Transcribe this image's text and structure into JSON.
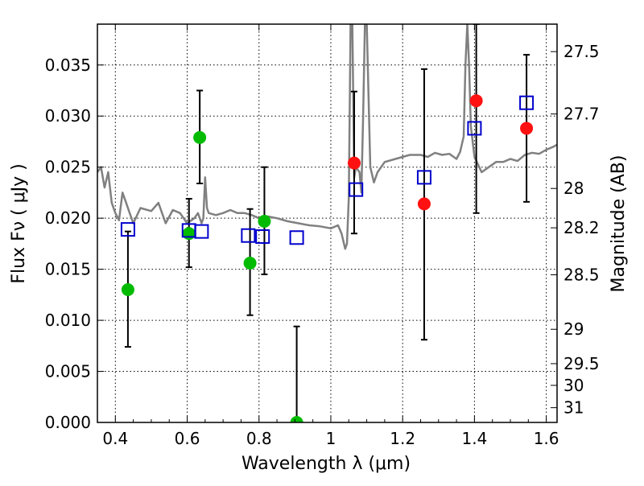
{
  "chart_data": {
    "type": "scatter",
    "xlabel": "Wavelength  λ (μm)",
    "ylabel": "Flux  Fν  ( μJy )",
    "y2label": "Magnitude (AB)",
    "xlim": [
      0.35,
      1.63
    ],
    "ylim": [
      0.0,
      0.039
    ],
    "grid": true,
    "x_ticks": [
      {
        "v": 0.4,
        "label": "0.4"
      },
      {
        "v": 0.6,
        "label": "0.6"
      },
      {
        "v": 0.8,
        "label": "0.8"
      },
      {
        "v": 1.0,
        "label": "1"
      },
      {
        "v": 1.2,
        "label": "1.2"
      },
      {
        "v": 1.4,
        "label": "1.4"
      },
      {
        "v": 1.6,
        "label": "1.6"
      }
    ],
    "y_ticks": [
      {
        "v": 0.0,
        "label": "0.000"
      },
      {
        "v": 0.005,
        "label": "0.005"
      },
      {
        "v": 0.01,
        "label": "0.010"
      },
      {
        "v": 0.015,
        "label": "0.015"
      },
      {
        "v": 0.02,
        "label": "0.020"
      },
      {
        "v": 0.025,
        "label": "0.025"
      },
      {
        "v": 0.03,
        "label": "0.030"
      },
      {
        "v": 0.035,
        "label": "0.035"
      }
    ],
    "y2_ticks": [
      {
        "mag": 27.5,
        "label": "27.5"
      },
      {
        "mag": 27.7,
        "label": "27.7"
      },
      {
        "mag": 28,
        "label": "28"
      },
      {
        "mag": 28.2,
        "label": "28.2"
      },
      {
        "mag": 28.5,
        "label": "28.5"
      },
      {
        "mag": 29,
        "label": "29"
      },
      {
        "mag": 29.5,
        "label": "29.5"
      },
      {
        "mag": 30,
        "label": "30"
      },
      {
        "mag": 31,
        "label": "31"
      }
    ],
    "series": [
      {
        "kind": "line",
        "color": "#808080",
        "x": [
          0.35,
          0.36,
          0.37,
          0.38,
          0.39,
          0.4,
          0.41,
          0.42,
          0.43,
          0.44,
          0.45,
          0.47,
          0.5,
          0.52,
          0.54,
          0.56,
          0.58,
          0.6,
          0.62,
          0.63,
          0.64,
          0.645,
          0.65,
          0.655,
          0.66,
          0.68,
          0.7,
          0.72,
          0.74,
          0.76,
          0.78,
          0.8,
          0.82,
          0.85,
          0.88,
          0.91,
          0.94,
          0.97,
          1.0,
          1.02,
          1.03,
          1.04,
          1.045,
          1.05,
          1.055,
          1.06,
          1.065,
          1.07,
          1.08,
          1.085,
          1.09,
          1.095,
          1.1,
          1.11,
          1.12,
          1.13,
          1.15,
          1.18,
          1.2,
          1.22,
          1.25,
          1.27,
          1.29,
          1.31,
          1.33,
          1.35,
          1.36,
          1.37,
          1.375,
          1.38,
          1.385,
          1.39,
          1.4,
          1.42,
          1.44,
          1.46,
          1.48,
          1.5,
          1.52,
          1.54,
          1.56,
          1.58,
          1.6,
          1.62,
          1.63
        ],
        "y": [
          0.0245,
          0.025,
          0.023,
          0.0245,
          0.0215,
          0.0205,
          0.0198,
          0.0225,
          0.0215,
          0.0205,
          0.0195,
          0.021,
          0.0207,
          0.0215,
          0.0195,
          0.0208,
          0.0205,
          0.0195,
          0.02,
          0.0205,
          0.0195,
          0.02,
          0.024,
          0.021,
          0.0205,
          0.0203,
          0.0205,
          0.0208,
          0.0205,
          0.0205,
          0.0203,
          0.02,
          0.0202,
          0.02,
          0.0197,
          0.0195,
          0.0193,
          0.0192,
          0.019,
          0.0193,
          0.0185,
          0.017,
          0.0175,
          0.022,
          0.039,
          0.039,
          0.024,
          0.025,
          0.0245,
          0.0225,
          0.03,
          0.039,
          0.039,
          0.025,
          0.0235,
          0.0245,
          0.0255,
          0.0258,
          0.026,
          0.0262,
          0.0262,
          0.026,
          0.0264,
          0.0262,
          0.0263,
          0.0258,
          0.0265,
          0.028,
          0.035,
          0.039,
          0.035,
          0.029,
          0.026,
          0.0245,
          0.025,
          0.0255,
          0.0255,
          0.0258,
          0.0256,
          0.0262,
          0.0264,
          0.0263,
          0.0267,
          0.027,
          0.0272
        ]
      },
      {
        "kind": "errorbar",
        "color": "#000000",
        "x": [
          0.435,
          0.605,
          0.635,
          0.775,
          0.815,
          0.905,
          1.065,
          1.26,
          1.405,
          1.545
        ],
        "ylow": [
          0.0074,
          0.0152,
          0.0234,
          0.0105,
          0.0145,
          0.0,
          0.0185,
          0.0081,
          0.0205,
          0.0216
        ],
        "yhigh": [
          0.0187,
          0.0219,
          0.0325,
          0.0209,
          0.025,
          0.0094,
          0.0324,
          0.0346,
          0.039,
          0.036
        ]
      },
      {
        "kind": "points",
        "marker": "circle",
        "color": "#00bb00",
        "x": [
          0.435,
          0.605,
          0.635,
          0.775,
          0.815,
          0.905
        ],
        "y": [
          0.013,
          0.0185,
          0.0279,
          0.0156,
          0.0197,
          0.0
        ]
      },
      {
        "kind": "points",
        "marker": "circle",
        "color": "#ff1111",
        "x": [
          1.065,
          1.26,
          1.405,
          1.545
        ],
        "y": [
          0.0254,
          0.0214,
          0.0315,
          0.0288
        ]
      },
      {
        "kind": "points",
        "marker": "square-open",
        "color": "#0000cc",
        "x": [
          0.435,
          0.605,
          0.64,
          0.77,
          0.81,
          0.905,
          1.07,
          1.26,
          1.4,
          1.545
        ],
        "y": [
          0.0189,
          0.0188,
          0.0187,
          0.0183,
          0.0182,
          0.0181,
          0.0228,
          0.024,
          0.0288,
          0.0313
        ]
      }
    ]
  }
}
